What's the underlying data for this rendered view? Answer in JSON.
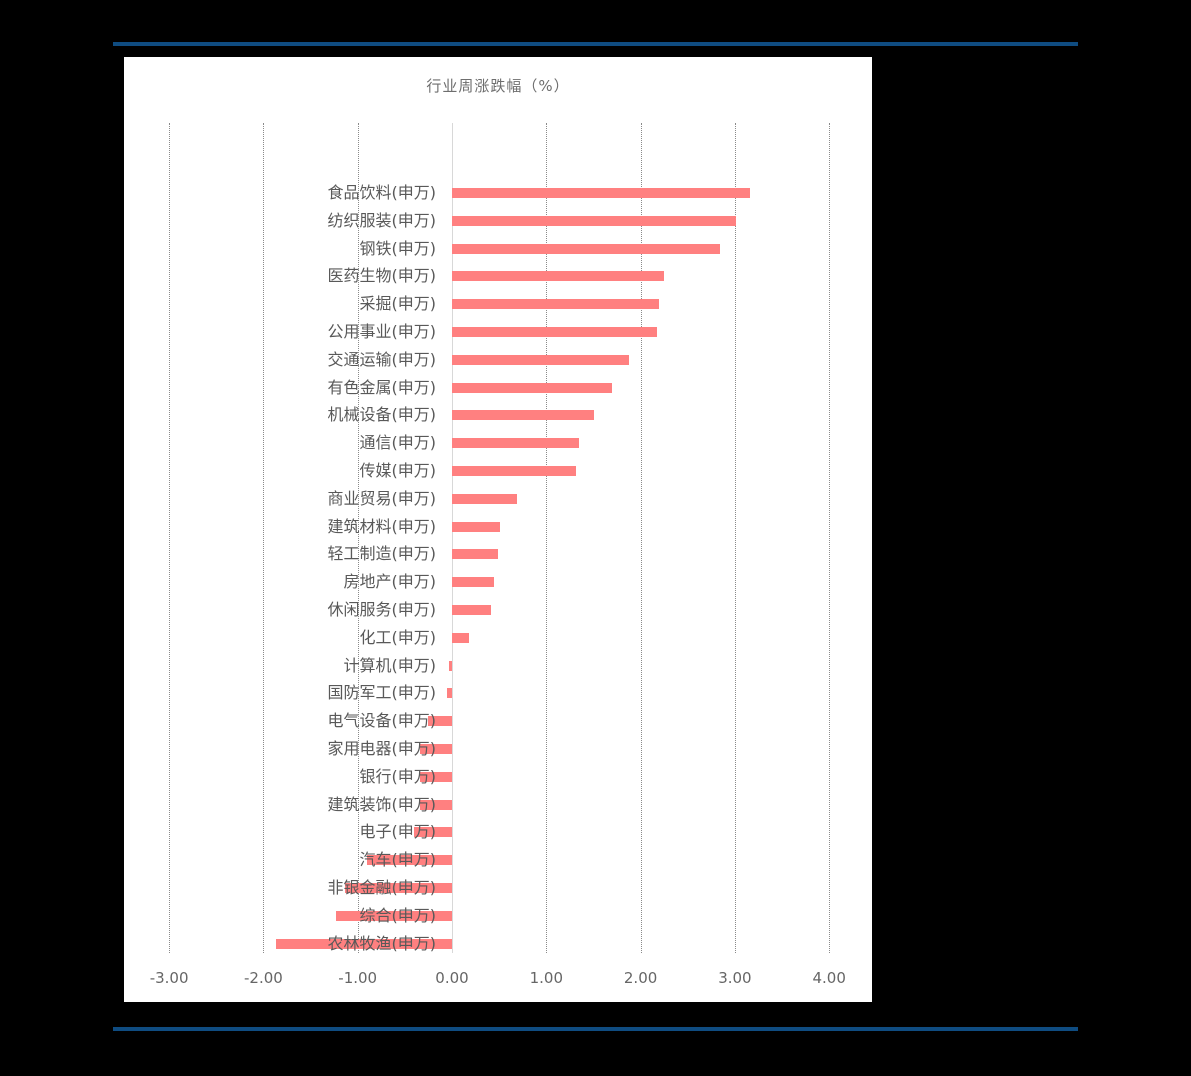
{
  "colors": {
    "background": "#000000",
    "panel": "#ffffff",
    "rule": "#0f4c81",
    "bar": "#ff8080",
    "text": "#595959"
  },
  "chart_data": {
    "type": "bar",
    "orientation": "horizontal",
    "title": "行业周涨跌幅（%）",
    "xlabel": "",
    "ylabel": "",
    "xlim": [
      -3,
      4
    ],
    "x_ticks": [
      "-3.00",
      "-2.00",
      "-1.00",
      "0.00",
      "1.00",
      "2.00",
      "3.00",
      "4.00"
    ],
    "grid": true,
    "legend": null,
    "categories": [
      "食品饮料(申万)",
      "纺织服装(申万)",
      "钢铁(申万)",
      "医药生物(申万)",
      "采掘(申万)",
      "公用事业(申万)",
      "交通运输(申万)",
      "有色金属(申万)",
      "机械设备(申万)",
      "通信(申万)",
      "传媒(申万)",
      "商业贸易(申万)",
      "建筑材料(申万)",
      "轻工制造(申万)",
      "房地产(申万)",
      "休闲服务(申万)",
      "化工(申万)",
      "计算机(申万)",
      "国防军工(申万)",
      "电气设备(申万)",
      "家用电器(申万)",
      "银行(申万)",
      "建筑装饰(申万)",
      "电子(申万)",
      "汽车(申万)",
      "非银金融(申万)",
      "综合(申万)",
      "农林牧渔(申万)"
    ],
    "values": [
      3.16,
      3.01,
      2.84,
      2.25,
      2.19,
      2.17,
      1.88,
      1.7,
      1.51,
      1.35,
      1.32,
      0.69,
      0.51,
      0.49,
      0.45,
      0.41,
      0.18,
      -0.03,
      -0.05,
      -0.25,
      -0.34,
      -0.34,
      -0.34,
      -0.4,
      -0.9,
      -1.13,
      -1.23,
      -1.87
    ]
  }
}
